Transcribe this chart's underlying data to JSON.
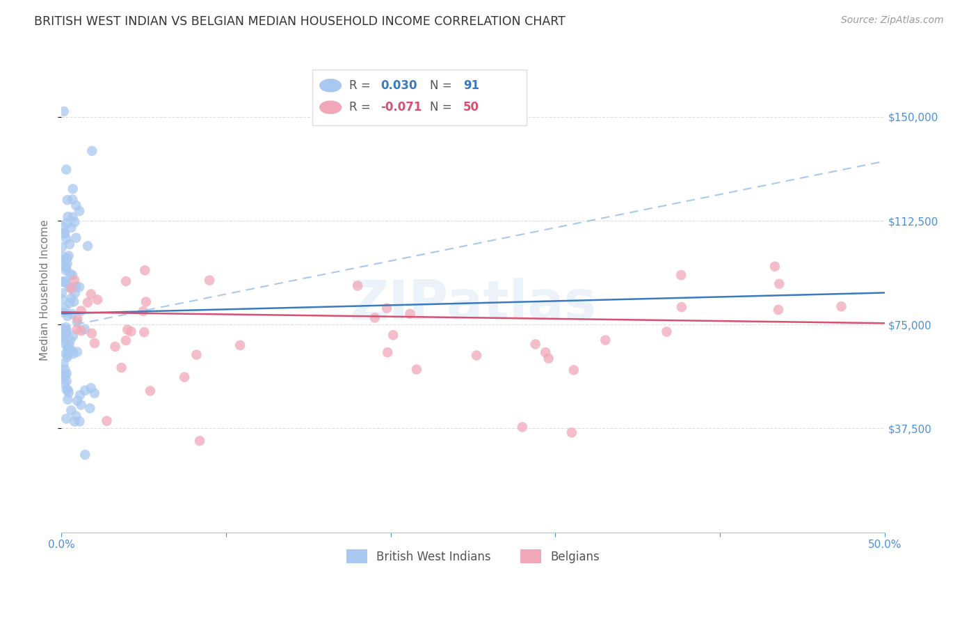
{
  "title": "BRITISH WEST INDIAN VS BELGIAN MEDIAN HOUSEHOLD INCOME CORRELATION CHART",
  "source_text": "Source: ZipAtlas.com",
  "ylabel": "Median Household Income",
  "watermark": "ZIPatlas",
  "legend_blue_label": "British West Indians",
  "legend_pink_label": "Belgians",
  "xlim": [
    0.0,
    0.5
  ],
  "ylim": [
    0,
    175000
  ],
  "yticks": [
    37500,
    75000,
    112500,
    150000
  ],
  "ytick_labels": [
    "$37,500",
    "$75,000",
    "$112,500",
    "$150,000"
  ],
  "xticks": [
    0.0,
    0.1,
    0.2,
    0.3,
    0.4,
    0.5
  ],
  "xtick_labels": [
    "0.0%",
    "",
    "",
    "",
    "",
    "50.0%"
  ],
  "blue_scatter_color": "#a8c8f0",
  "pink_scatter_color": "#f0a8b8",
  "blue_solid_color": "#3a7abf",
  "pink_solid_color": "#d94f70",
  "blue_dashed_color": "#a8c8f0",
  "tick_label_color": "#4a90d9",
  "ylabel_color": "#777777",
  "title_color": "#333333",
  "source_color": "#999999",
  "background_color": "#ffffff",
  "grid_color": "#dddddd",
  "legend_box_color": "#dddddd",
  "blue_r_value": "0.030",
  "blue_n_value": "91",
  "pink_r_value": "-0.071",
  "pink_n_value": "50",
  "blue_r_color": "#3a7abf",
  "pink_r_color": "#d94f70",
  "legend_label_color": "#555555",
  "blue_solid_intercept": 79000,
  "blue_solid_slope": 15000,
  "blue_dashed_intercept": 74000,
  "blue_dashed_slope": 120000,
  "pink_solid_intercept": 79500,
  "pink_solid_slope": -8000
}
